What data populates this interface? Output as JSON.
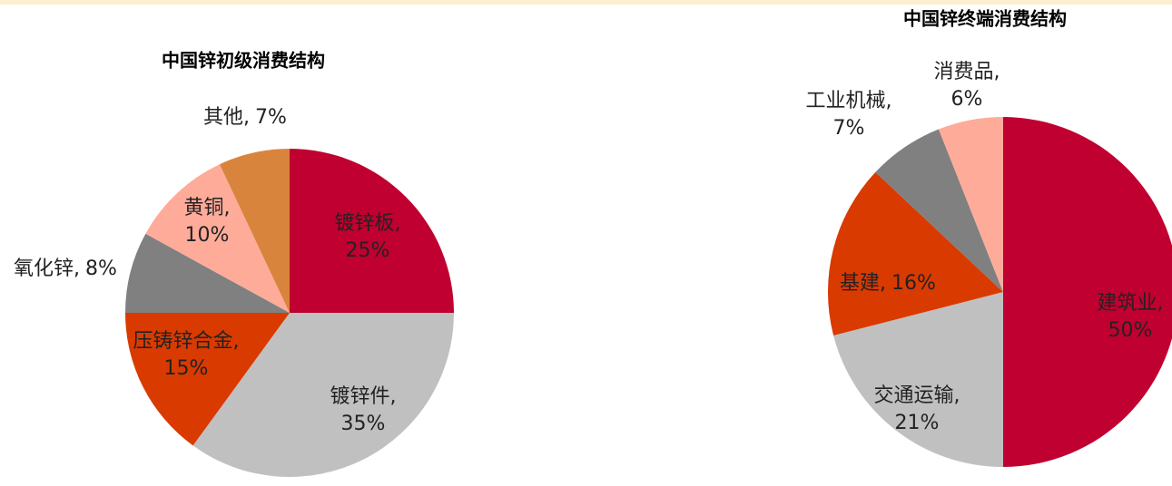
{
  "chart_data": [
    {
      "type": "pie",
      "title": "中国锌初级消费结构",
      "categories": [
        "镀锌板,",
        "镀锌件,",
        "压铸锌合金,",
        "氧化锌,",
        "黄铜,",
        "其他,"
      ],
      "values": [
        25,
        35,
        15,
        8,
        10,
        7
      ],
      "value_labels": [
        "25%",
        "35%",
        "15%",
        "8%",
        "10%",
        "7%"
      ],
      "colors": [
        "#c00030",
        "#c0c0c0",
        "#d93a00",
        "#808080",
        "#ffab9a",
        "#d9843d"
      ]
    },
    {
      "type": "pie",
      "title": "中国锌终端消费结构",
      "categories": [
        "建筑业,",
        "交通运输,",
        "基建,",
        "工业机械,",
        "消费品,"
      ],
      "values": [
        50,
        21,
        16,
        7,
        6
      ],
      "value_labels": [
        "50%",
        "21%",
        "16%",
        "7%",
        "6%"
      ],
      "colors": [
        "#c00030",
        "#c0c0c0",
        "#d93a00",
        "#808080",
        "#ffab9a"
      ]
    }
  ]
}
